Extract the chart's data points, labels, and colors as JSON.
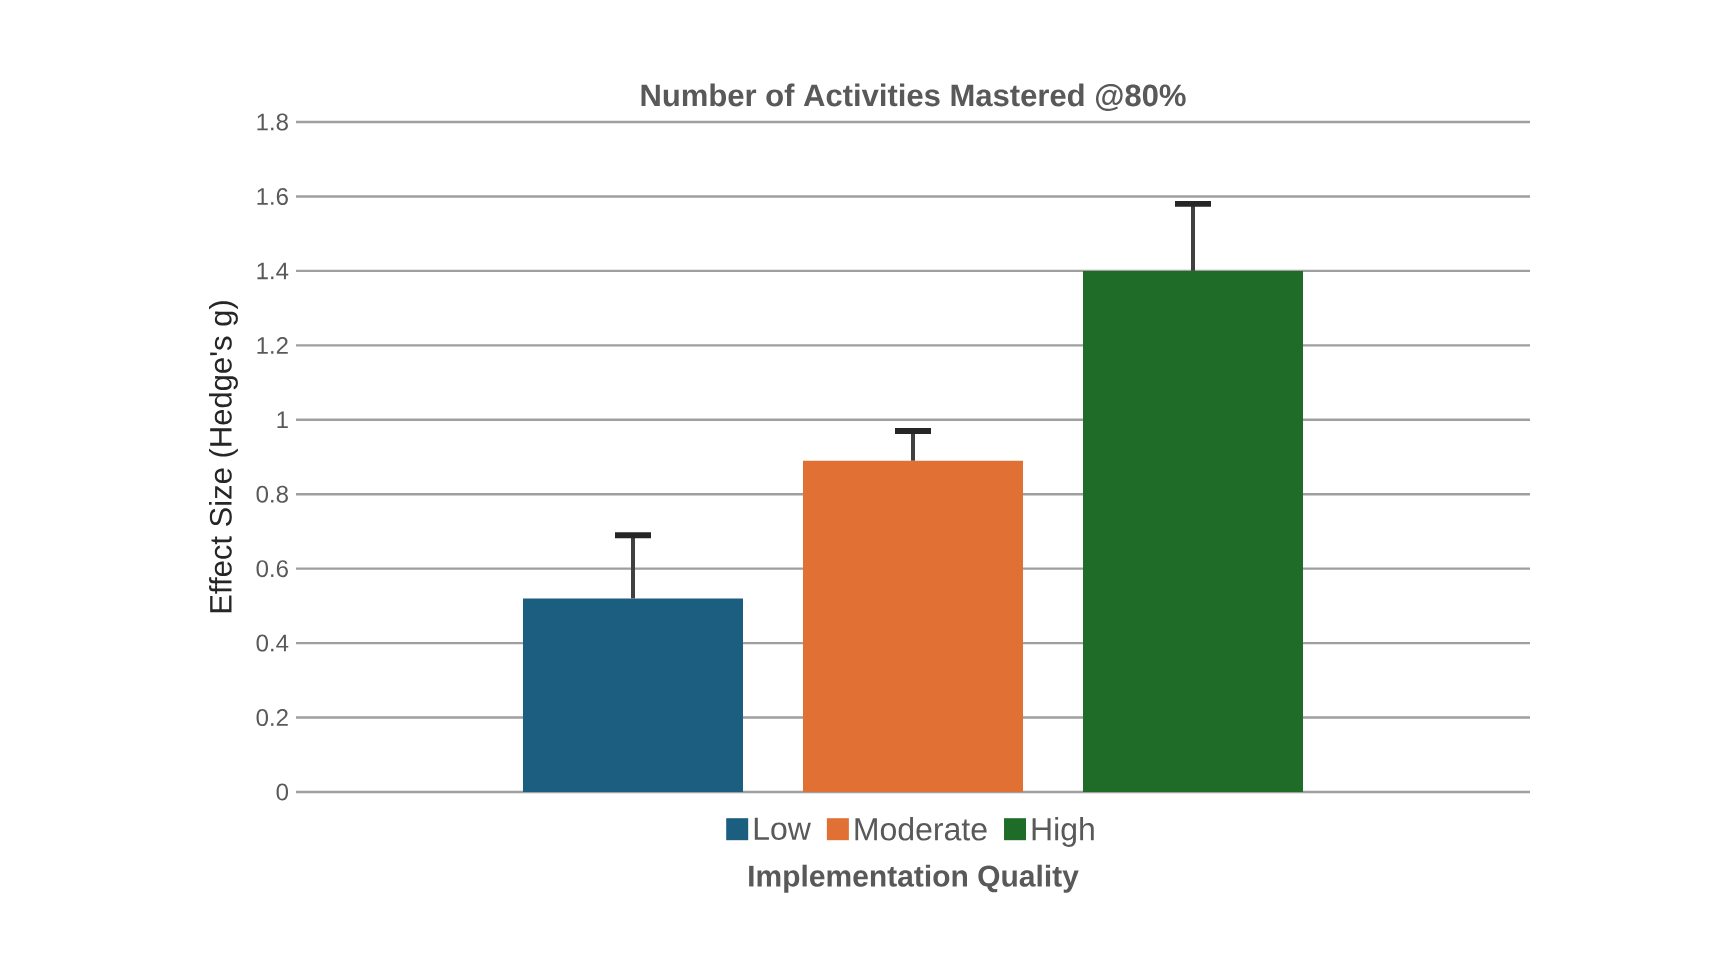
{
  "chart_data": {
    "type": "bar",
    "title": "Number of Activities Mastered @80%",
    "xlabel": "Implementation Quality",
    "ylabel": "Effect Size (Hedge's g)",
    "categories": [
      null
    ],
    "series": [
      {
        "name": "Low",
        "color": "#1b5e7f",
        "values": [
          0.52
        ],
        "errors": [
          [
            0.52,
            0.69
          ]
        ]
      },
      {
        "name": "Moderate",
        "color": "#e07033",
        "values": [
          0.89
        ],
        "errors": [
          [
            0.89,
            0.97
          ]
        ]
      },
      {
        "name": "High",
        "color": "#1f6b28",
        "values": [
          1.4
        ],
        "errors": [
          [
            1.4,
            1.58
          ]
        ]
      }
    ],
    "ylim": [
      0,
      1.8
    ],
    "yticks": [
      0,
      0.2,
      0.4,
      0.6,
      0.8,
      1,
      1.2,
      1.4,
      1.6,
      1.8
    ],
    "grid": "y",
    "legend": "bottom",
    "tick_labels": "y"
  }
}
